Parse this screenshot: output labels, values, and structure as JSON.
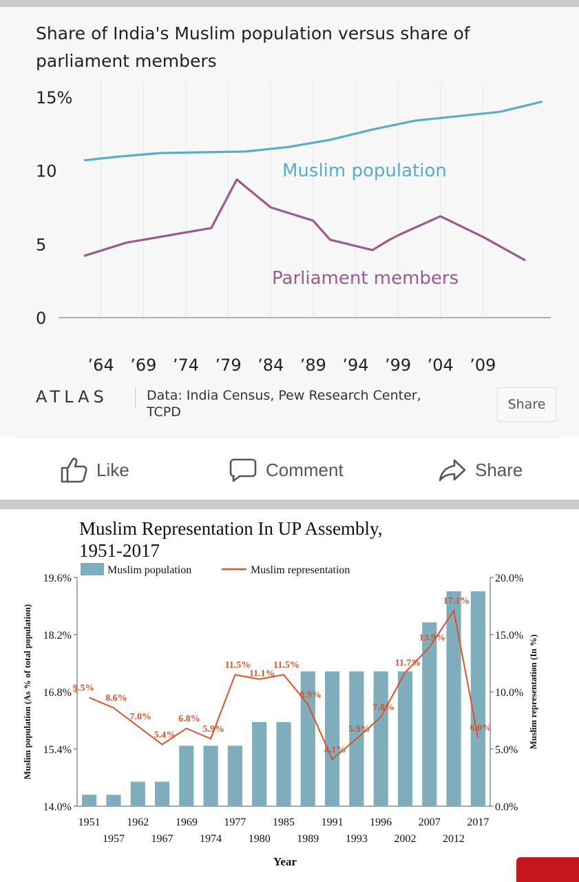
{
  "post1": {
    "title_line1": "Share of India's Muslim population versus share of",
    "title_line2": "parliament members",
    "logo": "ATLAS",
    "source_line1": "Data: India Census, Pew Research Center,",
    "source_line2": "TCPD",
    "share_label": "Share"
  },
  "actions": {
    "like": "Like",
    "comment": "Comment",
    "share": "Share"
  },
  "chart_data": [
    {
      "type": "line",
      "title": "Share of India's Muslim population versus share of parliament members",
      "ylim": [
        0,
        15
      ],
      "yticks": [
        "15%",
        "10",
        "5",
        "0"
      ],
      "xlim": [
        1959,
        2017
      ],
      "xtick_labels": [
        "’64",
        "’69",
        "’74",
        "’79",
        "’84",
        "’89",
        "’94",
        "’99",
        "’04",
        "’09"
      ],
      "xtick_years": [
        1964,
        1969,
        1974,
        1979,
        1984,
        1989,
        1994,
        1999,
        2004,
        2009
      ],
      "grid": "vertical",
      "series": [
        {
          "name": "Muslim population",
          "color": "#56aecb",
          "x": [
            1962,
            1971,
            1981,
            1991,
            2001,
            2011
          ],
          "y": [
            10.7,
            11.2,
            11.4,
            12.1,
            13.4,
            14.4
          ],
          "x_ext": [
            1962,
            1966,
            1971,
            1976,
            1981,
            1986,
            1991,
            1996,
            2001,
            2006,
            2011,
            2016
          ],
          "y_ext": [
            10.7,
            10.95,
            11.2,
            11.25,
            11.3,
            11.6,
            12.1,
            12.8,
            13.4,
            13.7,
            14.0,
            14.7
          ]
        },
        {
          "name": "Parliament members",
          "color": "#9b5a8f",
          "x": [
            1962,
            1967,
            1971,
            1977,
            1980,
            1984,
            1989,
            1991,
            1996,
            1998,
            1999,
            2004,
            2009,
            2014
          ],
          "y": [
            4.2,
            5.1,
            5.5,
            6.1,
            9.4,
            7.5,
            6.6,
            5.3,
            4.6,
            5.3,
            5.6,
            6.9,
            5.5,
            3.9
          ]
        }
      ]
    },
    {
      "type": "bar",
      "title": "Muslim Representation In UP Assembly, 1951-2017",
      "title_line1": "Muslim Representation In UP Assembly,",
      "title_line2": "1951-2017",
      "xlabel": "Year",
      "ylabel_left": "Muslim population (As % of total population)",
      "ylabel_right": "Muslim representation (In %)",
      "ylim_left": [
        14.0,
        19.6
      ],
      "ylim_right": [
        0,
        20
      ],
      "yticks_left": [
        "14.0%",
        "15.4%",
        "16.8%",
        "18.2%",
        "19.6%"
      ],
      "yticks_right": [
        "0.0%",
        "5.0%",
        "10.0%",
        "15.0%",
        "20.0%"
      ],
      "categories": [
        "1951",
        "1957",
        "1962",
        "1967",
        "1969",
        "1974",
        "1977",
        "1980",
        "1985",
        "1989",
        "1991",
        "1993",
        "1996",
        "2002",
        "2007",
        "2012",
        "2017"
      ],
      "series": [
        {
          "name": "Muslim population",
          "color": "#7fadbb",
          "values": [
            14.28,
            14.28,
            14.6,
            14.6,
            15.48,
            15.48,
            15.48,
            16.06,
            16.06,
            17.3,
            17.3,
            17.3,
            17.3,
            17.3,
            18.5,
            19.26,
            19.26
          ]
        },
        {
          "name": "Muslim representation",
          "color": "#d9532b",
          "values": [
            9.5,
            8.6,
            7.0,
            5.4,
            6.8,
            5.9,
            11.5,
            11.1,
            11.5,
            8.9,
            4.1,
            5.9,
            7.8,
            11.7,
            13.9,
            17.1,
            6.0
          ],
          "labels": [
            "9.5%",
            "8.6%",
            "7.0%",
            "5.4%",
            "6.8%",
            "5.9%",
            "11.5%",
            "11.1%",
            "11.5%",
            "8.9%",
            "4.1%",
            "5.9%",
            "7.8%",
            "11.7%",
            "13.9%",
            "17.1%",
            "6.0%"
          ]
        }
      ]
    }
  ],
  "colors": {
    "pop1": "#56aecb",
    "parl": "#9b5a8f",
    "bar": "#7fadbb",
    "rep": "#d9532b",
    "redcorner": "#c4161c"
  }
}
